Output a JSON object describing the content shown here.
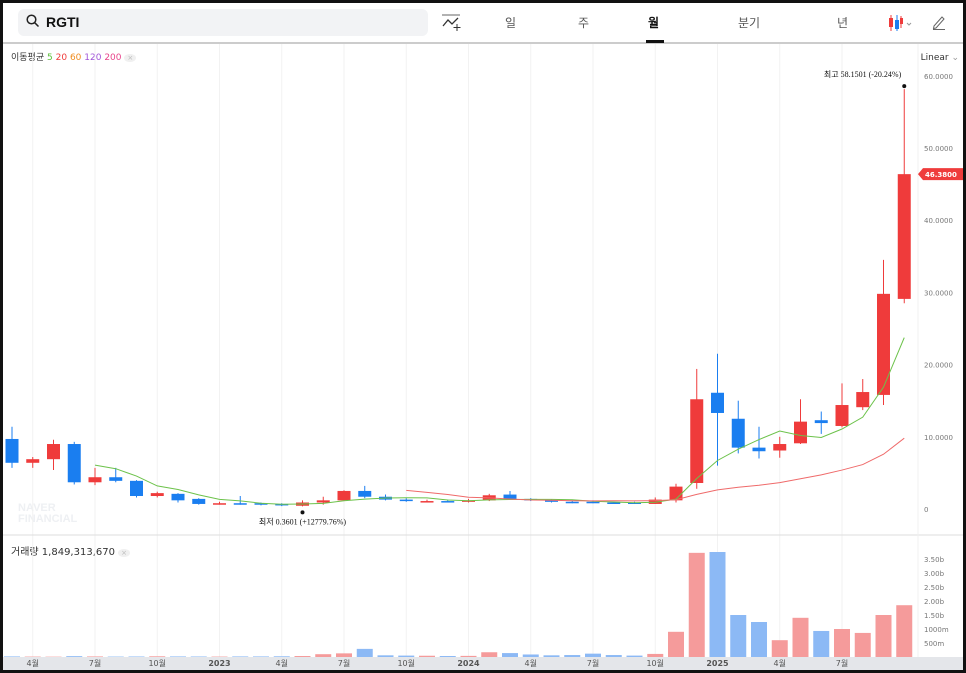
{
  "header": {
    "search_value": "RGTI",
    "tabs": [
      "일",
      "주",
      "월",
      "분기",
      "년"
    ],
    "active_tab": "월"
  },
  "ma_legend": {
    "label": "이동평균",
    "periods": [
      {
        "v": "5",
        "color": "#5bbf3a"
      },
      {
        "v": "20",
        "color": "#ef3b3b"
      },
      {
        "v": "60",
        "color": "#f08c1e"
      },
      {
        "v": "120",
        "color": "#a055d8"
      },
      {
        "v": "200",
        "color": "#e8458b"
      }
    ]
  },
  "scale": "Linear",
  "watermark": "NAVER FINANCIAL",
  "high_label": "최고  58.1501 (-20.24%)",
  "low_label": "최저  0.3601 (+12779.76%)",
  "current_price": "46.3800",
  "volume_legend": {
    "label": "거래량",
    "value": "1,849,313,670"
  },
  "colors": {
    "up": "#ef3b3b",
    "down": "#1a7ef0",
    "up_vol": "#f59b9b",
    "down_vol": "#8cb9f5",
    "ma5": "#6cc24a",
    "ma20": "#ef6a6a"
  },
  "chart_data": {
    "type": "candlestick",
    "months": [
      "2022-03",
      "2022-04",
      "2022-05",
      "2022-06",
      "2022-07",
      "2022-08",
      "2022-09",
      "2022-10",
      "2022-11",
      "2022-12",
      "2023-01",
      "2023-02",
      "2023-03",
      "2023-04",
      "2023-05",
      "2023-06",
      "2023-07",
      "2023-08",
      "2023-09",
      "2023-10",
      "2023-11",
      "2023-12",
      "2024-01",
      "2024-02",
      "2024-03",
      "2024-04",
      "2024-05",
      "2024-06",
      "2024-07",
      "2024-08",
      "2024-09",
      "2024-10",
      "2024-11",
      "2024-12",
      "2025-01",
      "2025-02",
      "2025-03",
      "2025-04",
      "2025-05",
      "2025-06",
      "2025-07",
      "2025-08",
      "2025-09",
      "2025-10"
    ],
    "ohlc": [
      [
        9.7,
        11.4,
        5.7,
        6.4
      ],
      [
        6.4,
        7.2,
        5.7,
        6.9
      ],
      [
        6.9,
        9.6,
        5.4,
        9.0
      ],
      [
        9.0,
        9.3,
        3.4,
        3.7
      ],
      [
        3.7,
        5.7,
        3.3,
        4.4
      ],
      [
        4.4,
        5.7,
        3.7,
        3.9
      ],
      [
        3.9,
        4.0,
        1.6,
        1.8
      ],
      [
        1.8,
        2.4,
        1.6,
        2.2
      ],
      [
        2.1,
        2.2,
        0.9,
        1.2
      ],
      [
        1.4,
        1.5,
        0.6,
        0.7
      ],
      [
        0.7,
        1.0,
        0.6,
        0.8
      ],
      [
        0.8,
        1.8,
        0.6,
        0.7
      ],
      [
        0.8,
        0.9,
        0.5,
        0.6
      ],
      [
        0.7,
        0.8,
        0.4,
        0.5
      ],
      [
        0.45,
        1.2,
        0.3601,
        0.9
      ],
      [
        0.9,
        1.7,
        0.6,
        1.2
      ],
      [
        1.2,
        2.6,
        1.2,
        2.5
      ],
      [
        2.5,
        3.2,
        1.5,
        1.7
      ],
      [
        1.7,
        2.0,
        1.2,
        1.3
      ],
      [
        1.3,
        1.5,
        1.0,
        1.1
      ],
      [
        1.1,
        1.3,
        0.9,
        1.1
      ],
      [
        1.1,
        1.3,
        0.9,
        1.0
      ],
      [
        1.0,
        1.4,
        0.9,
        1.2
      ],
      [
        1.2,
        2.1,
        1.1,
        1.9
      ],
      [
        2.0,
        2.5,
        1.3,
        1.4
      ],
      [
        1.4,
        1.5,
        1.1,
        1.2
      ],
      [
        1.2,
        1.3,
        0.9,
        1.0
      ],
      [
        1.0,
        1.2,
        0.8,
        0.9
      ],
      [
        1.0,
        1.2,
        0.8,
        0.9
      ],
      [
        0.9,
        1.0,
        0.7,
        0.85
      ],
      [
        0.9,
        1.0,
        0.7,
        0.7
      ],
      [
        0.7,
        1.6,
        0.7,
        1.3
      ],
      [
        1.2,
        3.5,
        0.9,
        3.1
      ],
      [
        3.6,
        19.4,
        2.8,
        15.2
      ],
      [
        16.1,
        21.5,
        6.0,
        13.3
      ],
      [
        12.5,
        15.0,
        7.7,
        8.5
      ],
      [
        8.5,
        11.4,
        7.0,
        8.0
      ],
      [
        8.1,
        10.0,
        7.1,
        9.0
      ],
      [
        9.1,
        15.2,
        9.0,
        12.1
      ],
      [
        12.3,
        13.5,
        10.4,
        11.9
      ],
      [
        11.5,
        17.4,
        11.3,
        14.4
      ],
      [
        14.1,
        18.0,
        13.7,
        16.2
      ],
      [
        15.8,
        34.5,
        14.4,
        29.8
      ],
      [
        29.1,
        58.15,
        28.5,
        46.38
      ]
    ],
    "volume_millions": [
      20,
      15,
      12,
      30,
      20,
      15,
      18,
      25,
      20,
      18,
      15,
      20,
      20,
      25,
      35,
      100,
      130,
      290,
      60,
      50,
      45,
      35,
      40,
      170,
      140,
      90,
      60,
      70,
      120,
      70,
      50,
      110,
      900,
      3720,
      3750,
      1500,
      1250,
      600,
      1400,
      930,
      1000,
      860,
      1500,
      1849.3
    ],
    "y_ticks": [
      "0",
      "10.0000",
      "20.0000",
      "30.0000",
      "40.0000",
      "50.0000",
      "60.0000"
    ],
    "y_range": [
      0,
      60
    ],
    "vol_ticks": [
      "500m",
      "1000m",
      "1.50b",
      "2.00b",
      "2.50b",
      "3.00b",
      "3.50b"
    ],
    "x_ticks": [
      {
        "i": 1,
        "t": "4월"
      },
      {
        "i": 4,
        "t": "7월"
      },
      {
        "i": 7,
        "t": "10월"
      },
      {
        "i": 10,
        "t": "2023"
      },
      {
        "i": 13,
        "t": "4월"
      },
      {
        "i": 16,
        "t": "7월"
      },
      {
        "i": 19,
        "t": "10월"
      },
      {
        "i": 22,
        "t": "2024"
      },
      {
        "i": 25,
        "t": "4월"
      },
      {
        "i": 28,
        "t": "7월"
      },
      {
        "i": 31,
        "t": "10월"
      },
      {
        "i": 34,
        "t": "2025"
      },
      {
        "i": 37,
        "t": "4월"
      },
      {
        "i": 40,
        "t": "7월"
      }
    ]
  }
}
